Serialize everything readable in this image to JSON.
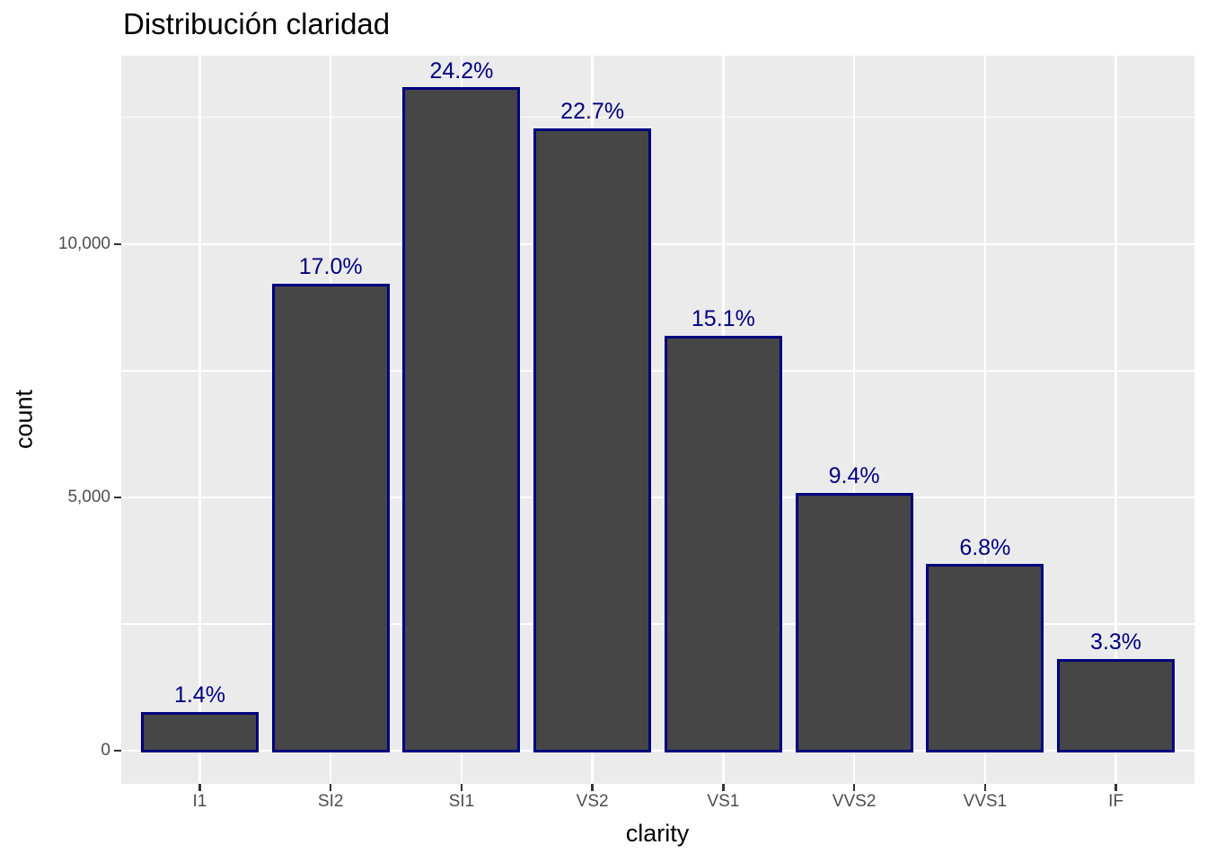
{
  "chart_data": {
    "type": "bar",
    "title": "Distribución claridad",
    "xlabel": "clarity",
    "ylabel": "count",
    "categories": [
      "I1",
      "SI2",
      "SI1",
      "VS2",
      "VS1",
      "VVS2",
      "VVS1",
      "IF"
    ],
    "values": [
      741,
      9194,
      13065,
      12258,
      8171,
      5066,
      3655,
      1790
    ],
    "bar_labels": [
      "1.4%",
      "17.0%",
      "24.2%",
      "22.7%",
      "15.1%",
      "9.4%",
      "6.8%",
      "3.3%"
    ],
    "y_ticks": [
      {
        "value": 0,
        "label": "0"
      },
      {
        "value": 5000,
        "label": "5,000"
      },
      {
        "value": 10000,
        "label": "10,000"
      }
    ],
    "y_minor_ticks": [
      2500,
      7500,
      12500
    ],
    "ylim": [
      -653,
      13718
    ],
    "grid": true,
    "legend": false,
    "style": {
      "bar_fill": "#464646",
      "bar_stroke": "#000080",
      "bar_label_color": "#000080",
      "panel_background": "#EBEBEB",
      "gridline_color": "#FFFFFF",
      "tick_label_color": "#4D4D4D",
      "title_color": "#000000"
    }
  }
}
